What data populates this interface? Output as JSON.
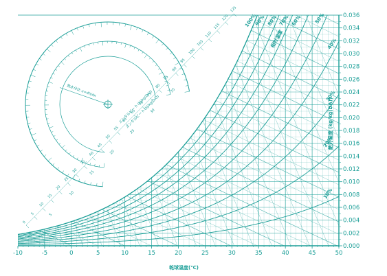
{
  "chart_data": {
    "type": "line",
    "title": "",
    "xlabel": "乾球温度(℃)",
    "ylabel": "絶対湿度 (kg/kg(DA))",
    "xlim": [
      -10,
      50
    ],
    "ylim": [
      0,
      0.036
    ],
    "x_ticks": [
      -10,
      -5,
      0,
      5,
      10,
      15,
      20,
      25,
      30,
      35,
      40,
      45,
      50
    ],
    "x_tick_labels": [
      "-10",
      "-5",
      "0",
      "5",
      "10",
      "15",
      "20",
      "25",
      "30",
      "35",
      "40",
      "45",
      "50"
    ],
    "y_ticks": [
      0,
      0.002,
      0.004,
      0.006,
      0.008,
      0.01,
      0.012,
      0.014,
      0.016,
      0.018,
      0.02,
      0.022,
      0.024,
      0.026,
      0.028,
      0.03,
      0.032,
      0.034,
      0.036
    ],
    "y_tick_labels": [
      "0.000",
      "0.002",
      "0.004",
      "0.006",
      "0.008",
      "0.010",
      "0.012",
      "0.014",
      "0.016",
      "0.018",
      "0.020",
      "0.022",
      "0.024",
      "0.026",
      "0.028",
      "0.030",
      "0.032",
      "0.034",
      "0.036"
    ],
    "series": [
      {
        "rh": 100,
        "label": "100%"
      },
      {
        "rh": 90,
        "label": "90%"
      },
      {
        "rh": 80,
        "label": "80%"
      },
      {
        "rh": 70,
        "label": "70%"
      },
      {
        "rh": 60,
        "label": "60%"
      },
      {
        "rh": 50,
        "label": "50%"
      },
      {
        "rh": 40,
        "label": "40%"
      },
      {
        "rh": 30,
        "label": "30%"
      },
      {
        "rh": 20,
        "label": "20%"
      },
      {
        "rh": 10,
        "label": "10%"
      }
    ],
    "relative_humidity_label": "相対湿度",
    "wet_bulb_labels": [
      "0",
      "5",
      "10",
      "15",
      "20",
      "25",
      "30",
      "35"
    ],
    "enthalpy_labels": [
      "0",
      "5",
      "10",
      "15",
      "20",
      "25",
      "30",
      "35",
      "40",
      "45",
      "50",
      "55",
      "60",
      "65",
      "70",
      "75",
      "80",
      "85",
      "90",
      "95",
      "100",
      "105",
      "110",
      "115",
      "120",
      "125"
    ],
    "protractor_labels": {
      "center": "熱水分比 u=dh/dx",
      "inner_scale": "エンタルピー h (kJ/kg(DA))",
      "outer_scale": "エンタルピー h (kJ/kg(DA))"
    },
    "grid": true,
    "color": "#1a9e97"
  }
}
